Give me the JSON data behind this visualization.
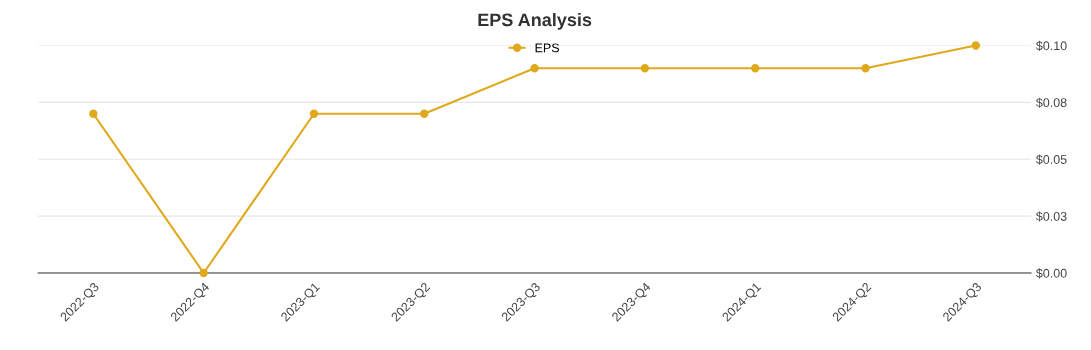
{
  "chart_data": {
    "type": "line",
    "title": "EPS Analysis",
    "categories": [
      "2022-Q3",
      "2022-Q4",
      "2023-Q1",
      "2023-Q2",
      "2023-Q3",
      "2023-Q4",
      "2024-Q1",
      "2024-Q2",
      "2024-Q3"
    ],
    "series": [
      {
        "name": "EPS",
        "color": "#e0a91b",
        "values": [
          0.07,
          0,
          0.07,
          0.07,
          0.09,
          0.09,
          0.09,
          0.09,
          0.1
        ]
      }
    ],
    "ylim": [
      0,
      0.1
    ],
    "yticks": [
      {
        "value": 0,
        "label": "$0.00"
      },
      {
        "value": 0.025,
        "label": "$0.03"
      },
      {
        "value": 0.05,
        "label": "$0.05"
      },
      {
        "value": 0.075,
        "label": "$0.08"
      },
      {
        "value": 0.1,
        "label": "$0.10"
      }
    ],
    "grid": "y",
    "legend": "top",
    "marker": "circle",
    "line_style": "solid"
  }
}
